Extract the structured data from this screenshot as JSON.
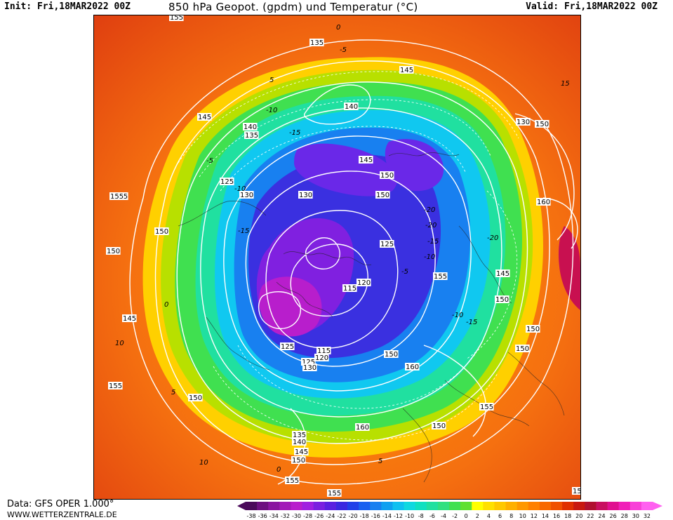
{
  "header": {
    "init": "Init: Fri,18MAR2022 00Z",
    "title": "850 hPa Geopot. (gpdm) und Temperatur (°C)",
    "valid": "Valid: Fri,18MAR2022 00Z"
  },
  "footer": {
    "data_source": "Data: GFS OPER 1.000°",
    "website": "WWW.WETTERZENTRALE.DE"
  },
  "legend": {
    "ticks": [
      "-38",
      "-36",
      "-34",
      "-32",
      "-30",
      "-28",
      "-26",
      "-24",
      "-22",
      "-20",
      "-18",
      "-16",
      "-14",
      "-12",
      "-10",
      "-8",
      "-6",
      "-4",
      "-2",
      "0",
      "2",
      "4",
      "6",
      "8",
      "10",
      "12",
      "14",
      "16",
      "18",
      "20",
      "22",
      "24",
      "26",
      "28",
      "30",
      "32"
    ],
    "colors": [
      "#4a0a5a",
      "#6d0f80",
      "#8a14a0",
      "#a21ab8",
      "#b81ecc",
      "#a020e0",
      "#7a20e0",
      "#5a20e0",
      "#3a28e0",
      "#2040e8",
      "#1860f0",
      "#1880f0",
      "#10a0f0",
      "#10c0f0",
      "#10d8e0",
      "#10e0c0",
      "#20e0a0",
      "#30e080",
      "#40e050",
      "#60e030",
      "#ffff00",
      "#ffe000",
      "#ffc800",
      "#ffb000",
      "#ff9800",
      "#ff8000",
      "#f86800",
      "#f05000",
      "#e03000",
      "#c81810",
      "#b01030",
      "#c81060",
      "#e01090",
      "#f020b8",
      "#f840d8",
      "#ff60f0"
    ]
  },
  "map": {
    "geopotential_labels": [
      "155",
      "135",
      "145",
      "140",
      "145",
      "140",
      "135",
      "125",
      "130",
      "130",
      "150",
      "150",
      "145",
      "155",
      "155",
      "150",
      "125",
      "115",
      "120",
      "125",
      "115",
      "120",
      "125",
      "130",
      "150",
      "160",
      "155",
      "145",
      "150",
      "150",
      "150",
      "155",
      "150",
      "160",
      "150",
      "145",
      "140",
      "135",
      "155",
      "155",
      "155",
      "150",
      "145",
      "150",
      "160",
      "150",
      "130",
      "150"
    ],
    "temperature_labels": [
      "0",
      "-5",
      "-10",
      "-15",
      "-20",
      "5",
      "-5",
      "-10",
      "-15",
      "-20",
      "-15",
      "-10",
      "-5",
      "0",
      "5",
      "10",
      "15",
      "-10",
      "-15",
      "-20",
      "0",
      "5",
      "10"
    ]
  }
}
